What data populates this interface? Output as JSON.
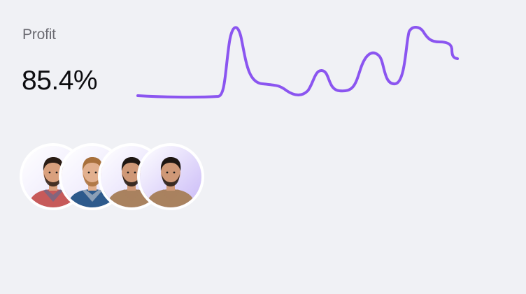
{
  "metric": {
    "label": "Profit",
    "value": "85.4%"
  },
  "sparkline": {
    "stroke_color": "#8b55f0"
  },
  "avatars": [
    {
      "name": "avatar-1",
      "shirt": "#c75a5a",
      "shirt_accent": "#4a6f9a",
      "hair": "#2a1c14",
      "skin": "#d9a07d",
      "bg": "#ffffff",
      "bg_tint": "#e9e4fb"
    },
    {
      "name": "avatar-2",
      "shirt": "#2d5a8c",
      "shirt_accent": "#d9d9d9",
      "hair": "#a8703c",
      "skin": "#e2b08f",
      "bg": "#ffffff",
      "bg_tint": "#e6e0fb"
    },
    {
      "name": "avatar-3",
      "shirt": "#a9825f",
      "shirt_accent": "#a9825f",
      "hair": "#1e1612",
      "skin": "#cf9877",
      "bg": "#ffffff",
      "bg_tint": "#ddd4fa"
    },
    {
      "name": "avatar-4",
      "shirt": "#a9825f",
      "shirt_accent": "#a9825f",
      "hair": "#1e1612",
      "skin": "#cf9877",
      "bg": "#ffffff",
      "bg_tint": "#c9b9f7"
    }
  ]
}
